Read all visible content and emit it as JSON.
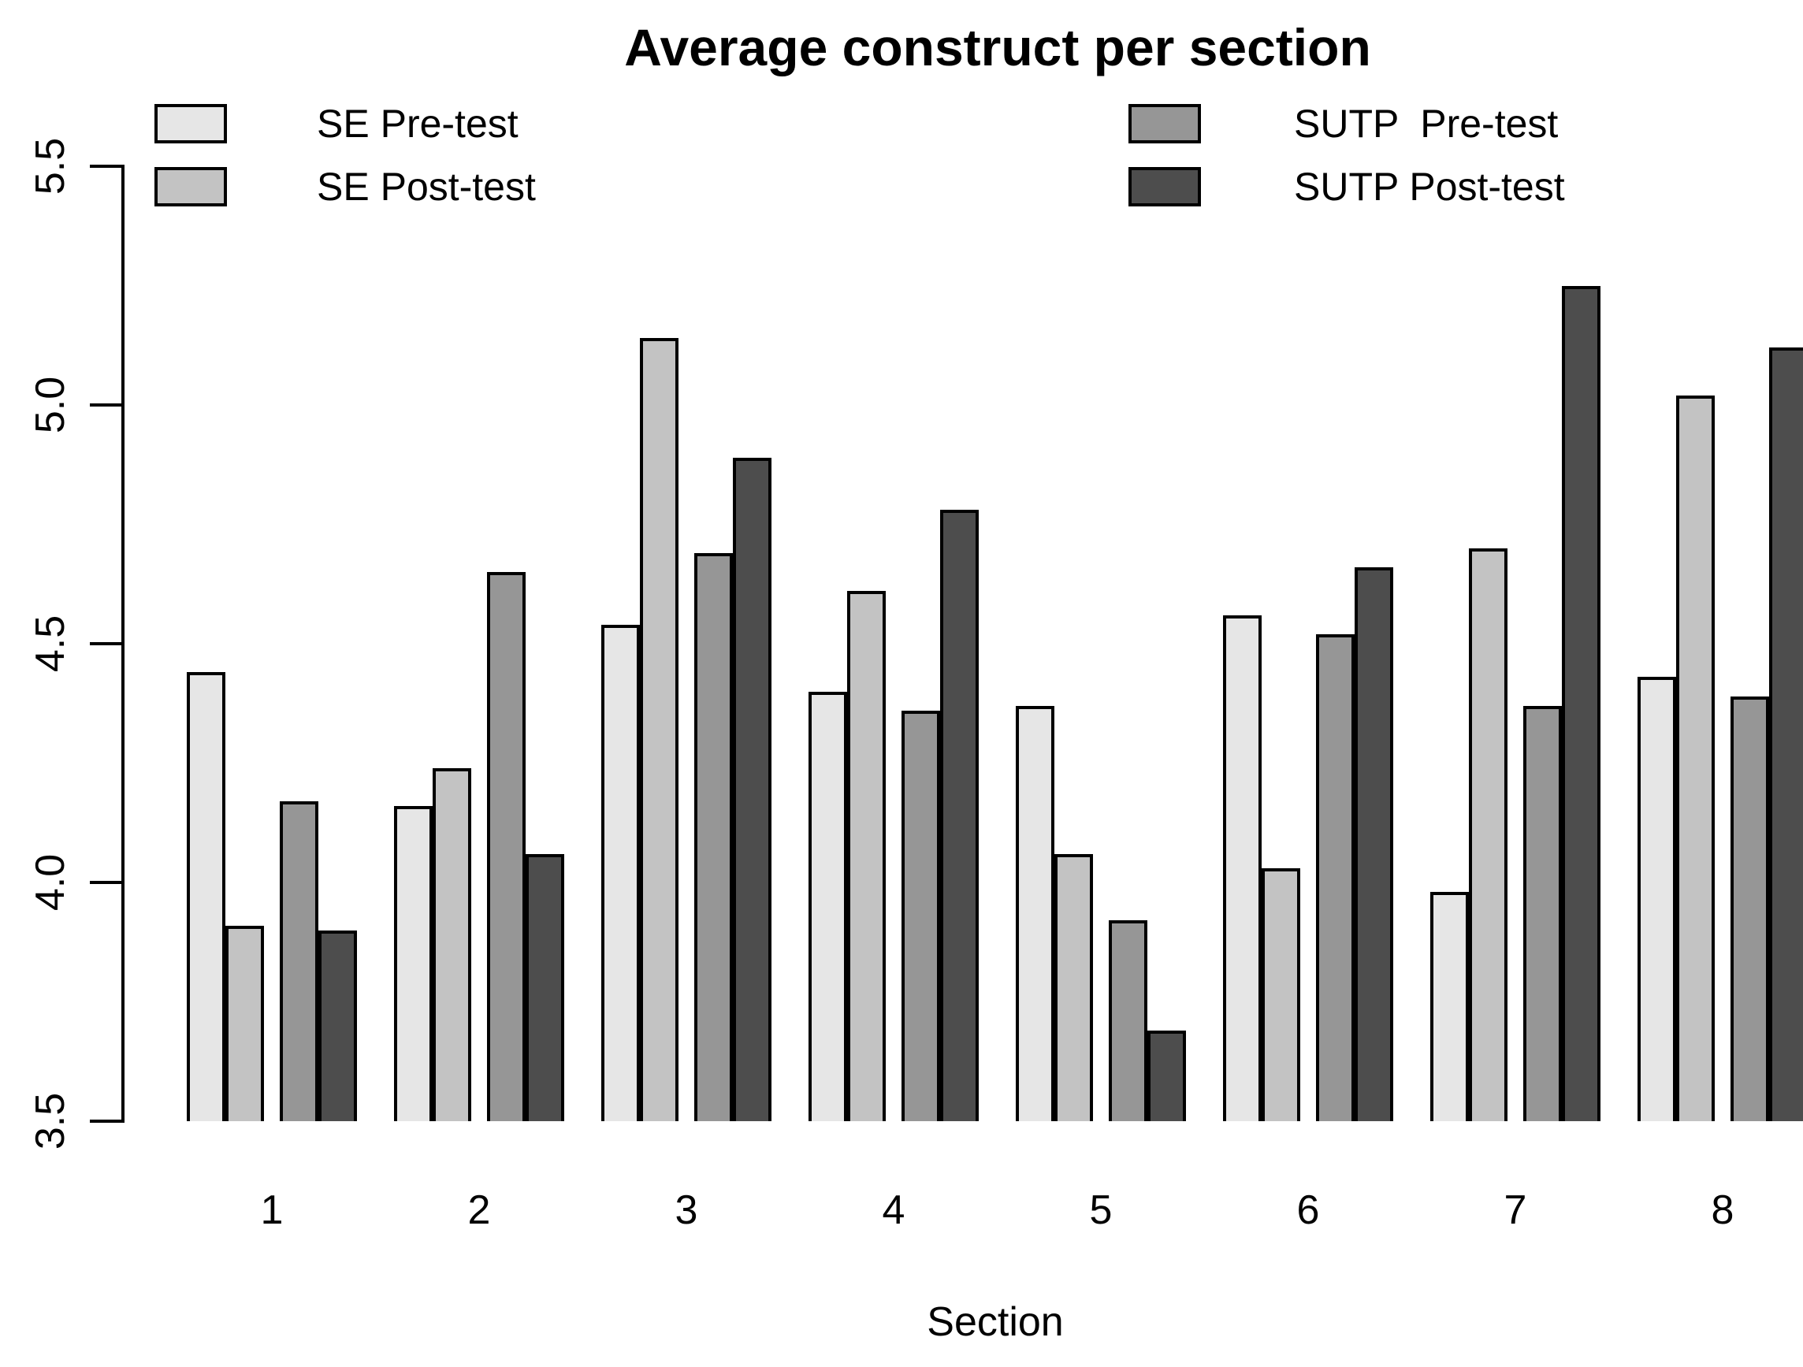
{
  "chart_data": {
    "type": "bar",
    "title": "Average construct per section",
    "xlabel": "Section",
    "ylabel": "",
    "categories": [
      "1",
      "2",
      "3",
      "4",
      "5",
      "6",
      "7",
      "8"
    ],
    "series": [
      {
        "name": "SE Pre-test",
        "color": "#E6E6E6",
        "values": [
          4.44,
          4.16,
          4.54,
          4.4,
          4.37,
          4.56,
          3.98,
          4.43
        ]
      },
      {
        "name": "SE Post-test",
        "color": "#C3C3C3",
        "values": [
          3.91,
          4.24,
          5.14,
          4.61,
          4.06,
          4.03,
          4.7,
          5.02
        ]
      },
      {
        "name": "SUTP  Pre-test",
        "color": "#969696",
        "values": [
          4.17,
          4.65,
          4.69,
          4.36,
          3.92,
          4.52,
          4.37,
          4.39
        ]
      },
      {
        "name": "SUTP Post-test",
        "color": "#4D4D4D",
        "values": [
          3.9,
          4.06,
          4.89,
          4.78,
          3.69,
          4.66,
          5.25,
          5.12
        ]
      }
    ],
    "ylim": [
      3.5,
      5.5
    ],
    "yticks": [
      "3.5",
      "4.0",
      "4.5",
      "5.0",
      "5.5"
    ],
    "grid": false,
    "legend_position": "top, two columns (SE column left, SUTP column right)",
    "bar_border_color": "#000000",
    "axis_color": "#000000",
    "background": "#FFFFFF"
  }
}
